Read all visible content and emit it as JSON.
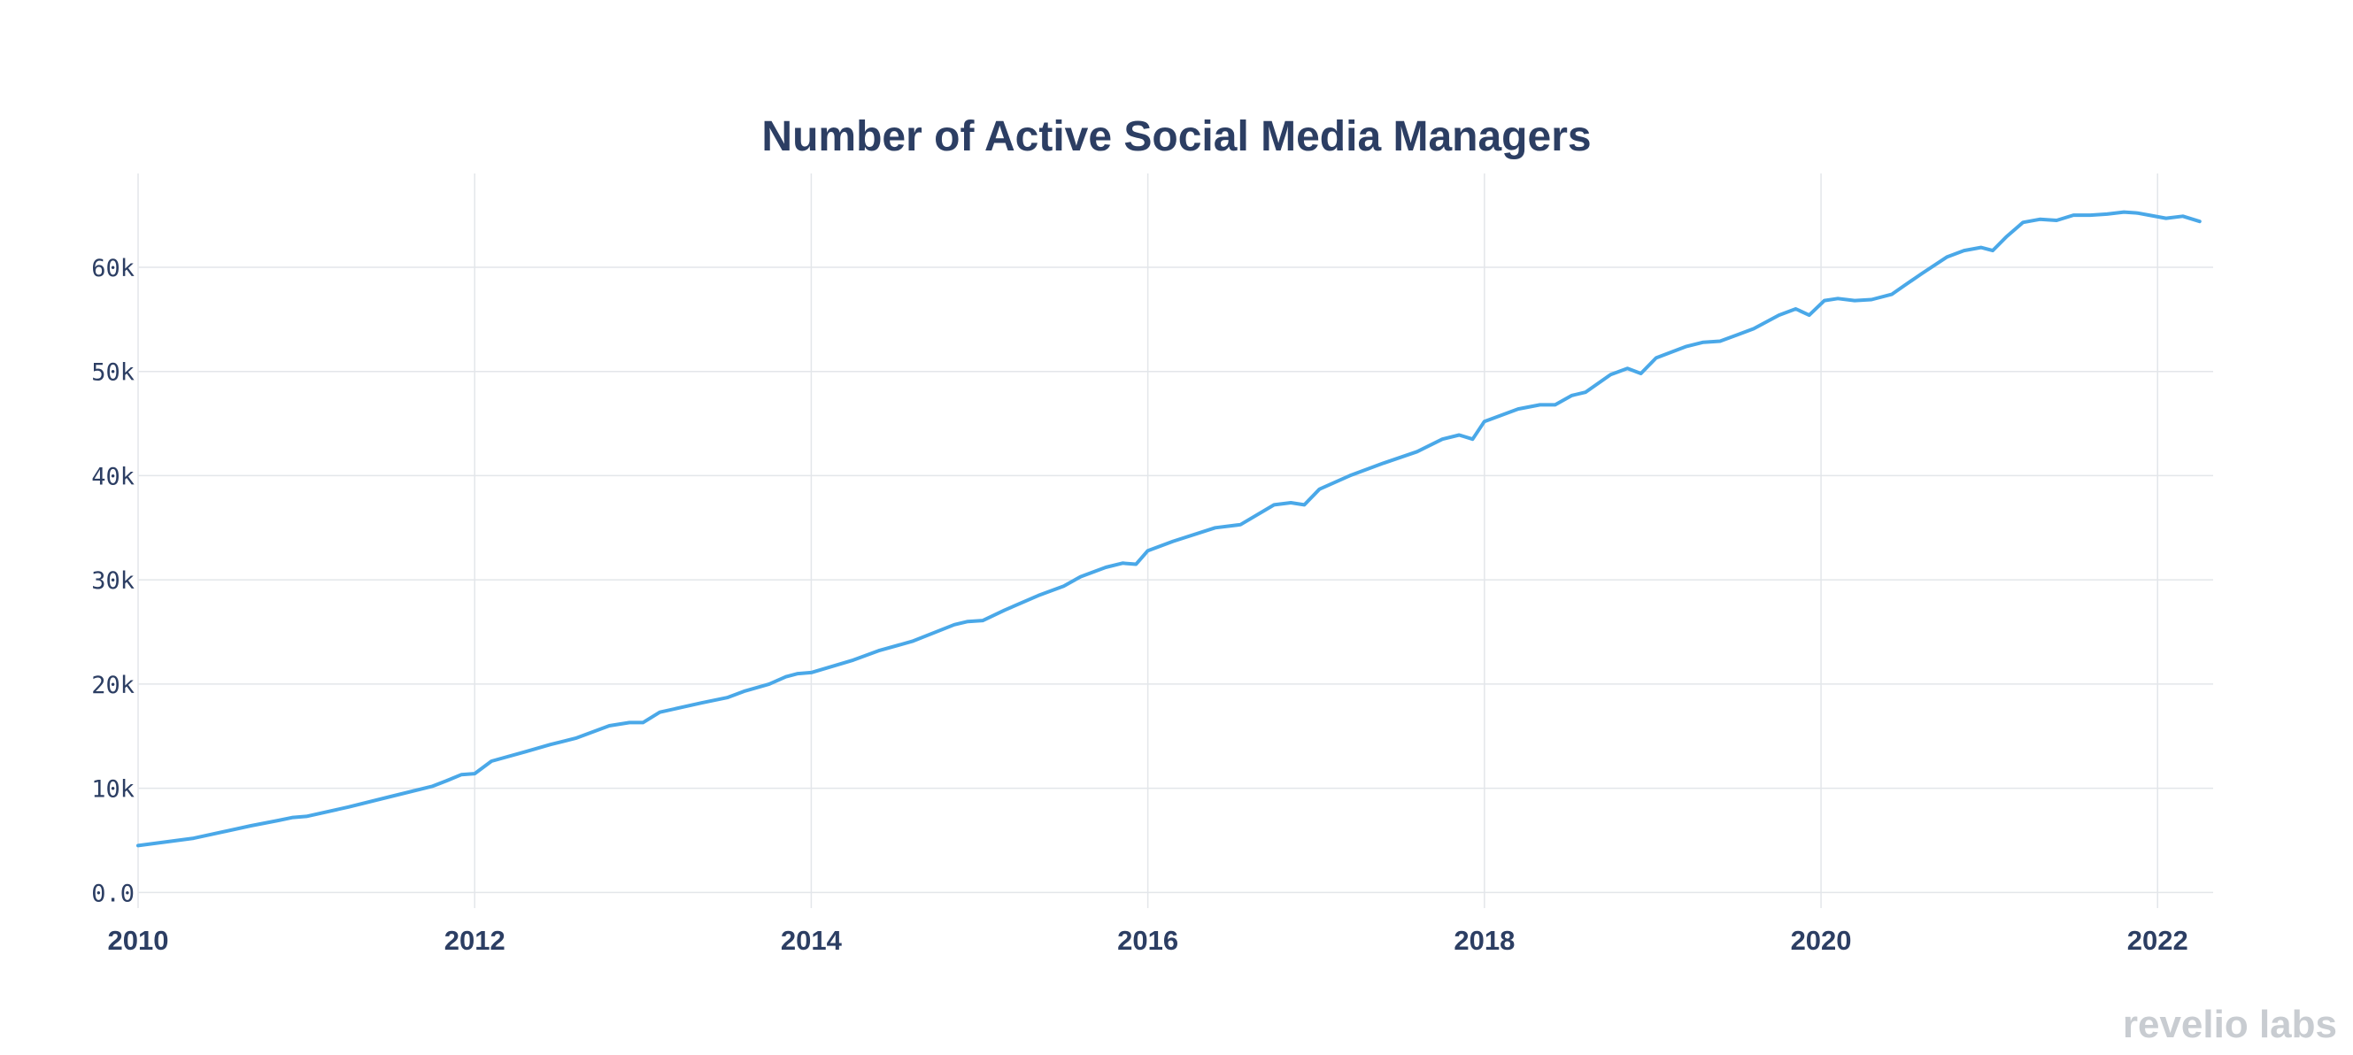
{
  "chart_data": {
    "type": "line",
    "title": "Number of Active Social Media Managers",
    "xlabel": "",
    "ylabel": "",
    "xlim": [
      2010,
      2022.33
    ],
    "ylim": [
      -1500,
      69000
    ],
    "x_ticks": [
      2010,
      2012,
      2014,
      2016,
      2018,
      2020,
      2022
    ],
    "x_tick_labels": [
      "2010",
      "2012",
      "2014",
      "2016",
      "2018",
      "2020",
      "2022"
    ],
    "y_ticks": [
      0,
      10000,
      20000,
      30000,
      40000,
      50000,
      60000
    ],
    "y_tick_labels": [
      "0.0",
      "10k",
      "20k",
      "30k",
      "40k",
      "50k",
      "60k"
    ],
    "grid": true,
    "color": "#4aa8e8",
    "series": [
      {
        "name": "Active Social Media Managers",
        "x": [
          2010.0,
          2010.33,
          2010.67,
          2010.83,
          2010.92,
          2011.0,
          2011.25,
          2011.5,
          2011.75,
          2011.83,
          2011.92,
          2012.0,
          2012.1,
          2012.3,
          2012.45,
          2012.6,
          2012.8,
          2012.92,
          2013.0,
          2013.1,
          2013.35,
          2013.5,
          2013.6,
          2013.75,
          2013.85,
          2013.92,
          2014.0,
          2014.25,
          2014.4,
          2014.6,
          2014.85,
          2014.93,
          2015.02,
          2015.15,
          2015.35,
          2015.5,
          2015.6,
          2015.75,
          2015.85,
          2015.93,
          2016.0,
          2016.15,
          2016.4,
          2016.55,
          2016.75,
          2016.85,
          2016.93,
          2017.02,
          2017.2,
          2017.4,
          2017.6,
          2017.75,
          2017.85,
          2017.93,
          2018.0,
          2018.2,
          2018.33,
          2018.42,
          2018.52,
          2018.6,
          2018.75,
          2018.85,
          2018.93,
          2019.02,
          2019.2,
          2019.3,
          2019.4,
          2019.5,
          2019.6,
          2019.75,
          2019.85,
          2019.93,
          2020.02,
          2020.1,
          2020.2,
          2020.3,
          2020.42,
          2020.5,
          2020.6,
          2020.75,
          2020.85,
          2020.95,
          2021.02,
          2021.1,
          2021.2,
          2021.3,
          2021.4,
          2021.5,
          2021.6,
          2021.7,
          2021.8,
          2021.88,
          2021.95,
          2022.05,
          2022.15,
          2022.25
        ],
        "values": [
          4500,
          5200,
          6400,
          6900,
          7200,
          7300,
          8200,
          9200,
          10200,
          10700,
          11300,
          11400,
          12600,
          13500,
          14200,
          14800,
          16000,
          16300,
          16300,
          17300,
          18200,
          18700,
          19300,
          20000,
          20700,
          21000,
          21100,
          22300,
          23200,
          24100,
          25700,
          26000,
          26100,
          27100,
          28500,
          29400,
          30300,
          31200,
          31600,
          31500,
          32800,
          33700,
          35000,
          35300,
          37200,
          37400,
          37200,
          38700,
          40000,
          41200,
          42300,
          43500,
          43900,
          43500,
          45200,
          46400,
          46800,
          46800,
          47700,
          48000,
          49700,
          50300,
          49800,
          51300,
          52400,
          52800,
          52900,
          53500,
          54100,
          55400,
          56000,
          55400,
          56800,
          57000,
          56800,
          56900,
          57400,
          58300,
          59400,
          61000,
          61600,
          61900,
          61600,
          62900,
          64300,
          64600,
          64500,
          65000,
          65000,
          65100,
          65300,
          65200,
          65000,
          64700,
          64900,
          64400
        ]
      }
    ]
  },
  "branding": {
    "logo_text": "revelio labs"
  }
}
